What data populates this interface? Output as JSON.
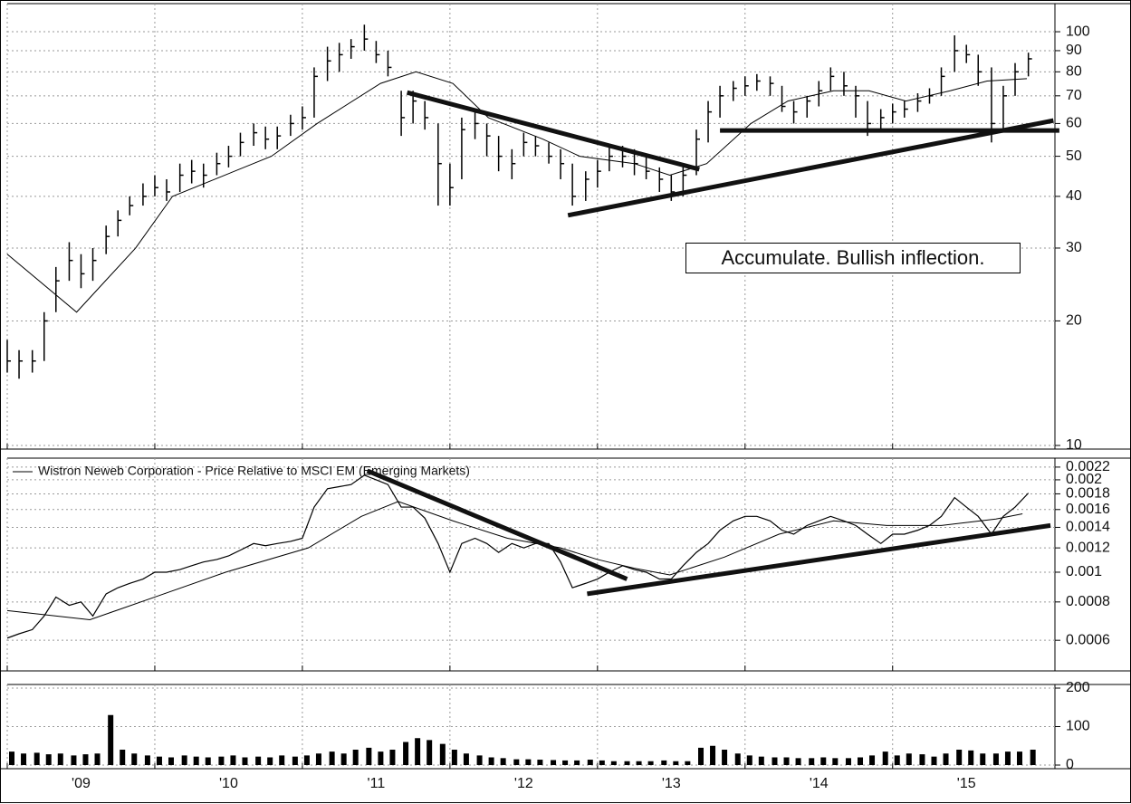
{
  "chart_data": [
    {
      "type": "ohlc",
      "log": true,
      "grid": true,
      "color": "#000000",
      "xlim": [
        2009,
        2016.1
      ],
      "ylim": [
        10,
        114.6
      ],
      "yticks": [
        10,
        20,
        30,
        40,
        50,
        60,
        70,
        80,
        90,
        100
      ],
      "x": [
        2009.0,
        2009.08,
        2009.17,
        2009.25,
        2009.33,
        2009.42,
        2009.5,
        2009.58,
        2009.67,
        2009.75,
        2009.83,
        2009.92,
        2010.0,
        2010.08,
        2010.17,
        2010.25,
        2010.33,
        2010.42,
        2010.5,
        2010.58,
        2010.67,
        2010.75,
        2010.83,
        2010.92,
        2011.0,
        2011.08,
        2011.17,
        2011.25,
        2011.33,
        2011.42,
        2011.5,
        2011.58,
        2011.67,
        2011.75,
        2011.83,
        2011.92,
        2012.0,
        2012.08,
        2012.17,
        2012.25,
        2012.33,
        2012.42,
        2012.5,
        2012.58,
        2012.67,
        2012.75,
        2012.83,
        2012.92,
        2013.0,
        2013.08,
        2013.17,
        2013.25,
        2013.33,
        2013.42,
        2013.5,
        2013.58,
        2013.67,
        2013.75,
        2013.83,
        2013.92,
        2014.0,
        2014.08,
        2014.17,
        2014.25,
        2014.33,
        2014.42,
        2014.5,
        2014.58,
        2014.67,
        2014.75,
        2014.83,
        2014.92,
        2015.0,
        2015.08,
        2015.17,
        2015.25,
        2015.33,
        2015.42,
        2015.5,
        2015.58,
        2015.67,
        2015.75,
        2015.83,
        2015.92
      ],
      "high": [
        18,
        17,
        17,
        21,
        27,
        31,
        29,
        30,
        34,
        37,
        40,
        43,
        45,
        44,
        48,
        49,
        48,
        51,
        53,
        57,
        60,
        59,
        59,
        63,
        66,
        82,
        92,
        94,
        96,
        104,
        95,
        90,
        72,
        72,
        68,
        60,
        48,
        62,
        64,
        60,
        56,
        52,
        57,
        56,
        54,
        52,
        48,
        46,
        49,
        53,
        53,
        52,
        50,
        47,
        45,
        48,
        58,
        68,
        74,
        76,
        78,
        79,
        78,
        74,
        68,
        70,
        76,
        82,
        80,
        74,
        68,
        65,
        67,
        68,
        71,
        73,
        82,
        98,
        93,
        88,
        82,
        74,
        84,
        89
      ],
      "low": [
        15,
        14.5,
        15,
        16,
        21,
        25,
        24,
        25,
        29,
        32,
        36,
        38,
        40,
        39,
        41,
        43,
        42,
        45,
        47,
        50,
        53,
        52,
        52,
        56,
        58,
        62,
        76,
        80,
        86,
        90,
        84,
        78,
        56,
        60,
        58,
        38,
        38,
        44,
        55,
        50,
        46,
        44,
        50,
        50,
        48,
        44,
        38,
        39,
        42,
        46,
        47,
        45,
        44,
        41,
        39,
        40,
        45,
        54,
        62,
        68,
        70,
        72,
        70,
        64,
        60,
        62,
        66,
        72,
        70,
        62,
        56,
        58,
        60,
        62,
        64,
        67,
        70,
        80,
        84,
        74,
        54,
        58,
        70,
        78
      ],
      "close": [
        16,
        16,
        16,
        20,
        25,
        28,
        26,
        28,
        32,
        35,
        38,
        40,
        42,
        41,
        45,
        46,
        45,
        48,
        50,
        54,
        57,
        55,
        56,
        60,
        62,
        78,
        85,
        88,
        92,
        96,
        88,
        82,
        62,
        68,
        62,
        48,
        42,
        58,
        60,
        56,
        50,
        48,
        54,
        53,
        50,
        48,
        40,
        44,
        46,
        50,
        50,
        48,
        46,
        44,
        41,
        45,
        55,
        64,
        70,
        73,
        74,
        76,
        75,
        66,
        64,
        68,
        72,
        78,
        74,
        70,
        60,
        62,
        64,
        65,
        68,
        70,
        78,
        90,
        88,
        80,
        60,
        70,
        80,
        86
      ],
      "ma": {
        "x": [
          2009.0,
          2009.47,
          2009.87,
          2010.12,
          2010.79,
          2011.1,
          2011.53,
          2011.77,
          2012.02,
          2012.26,
          2012.63,
          2012.88,
          2013.25,
          2013.49,
          2013.74,
          2014.04,
          2014.29,
          2014.6,
          2014.84,
          2015.09,
          2015.39,
          2015.64,
          2015.91
        ],
        "values": [
          29,
          21,
          30,
          40,
          50,
          60,
          75,
          80,
          75,
          62,
          55,
          50,
          48,
          45,
          48,
          60,
          68,
          72,
          72,
          68,
          72,
          76,
          77
        ]
      },
      "trendlines": [
        {
          "x": [
            2011.71,
            2013.69
          ],
          "values": [
            71.3,
            46.5
          ]
        },
        {
          "x": [
            2012.8,
            2016.09
          ],
          "values": [
            36,
            61
          ]
        },
        {
          "x": [
            2013.83,
            2016.13
          ],
          "values": [
            57.7,
            57.7
          ]
        }
      ],
      "annotation": "Accumulate. Bullish inflection."
    },
    {
      "type": "line",
      "log": true,
      "grid": true,
      "xlim": [
        2009,
        2016.1
      ],
      "ylim": [
        0.00049,
        0.00229
      ],
      "yticks": [
        0.0006,
        0.0008,
        0.001,
        0.0012,
        0.0014,
        0.0016,
        0.0018,
        0.002,
        0.0022
      ],
      "x": [
        2009.0,
        2009.08,
        2009.17,
        2009.25,
        2009.33,
        2009.42,
        2009.5,
        2009.58,
        2009.67,
        2009.75,
        2009.83,
        2009.92,
        2010.0,
        2010.08,
        2010.17,
        2010.25,
        2010.33,
        2010.42,
        2010.5,
        2010.58,
        2010.67,
        2010.75,
        2010.83,
        2010.92,
        2011.0,
        2011.08,
        2011.17,
        2011.25,
        2011.33,
        2011.42,
        2011.5,
        2011.58,
        2011.67,
        2011.75,
        2011.83,
        2011.92,
        2012.0,
        2012.08,
        2012.17,
        2012.25,
        2012.33,
        2012.42,
        2012.5,
        2012.58,
        2012.67,
        2012.75,
        2012.83,
        2012.92,
        2013.0,
        2013.08,
        2013.17,
        2013.25,
        2013.33,
        2013.42,
        2013.5,
        2013.58,
        2013.67,
        2013.75,
        2013.83,
        2013.92,
        2014.0,
        2014.08,
        2014.17,
        2014.25,
        2014.33,
        2014.42,
        2014.5,
        2014.58,
        2014.67,
        2014.75,
        2014.83,
        2014.92,
        2015.0,
        2015.08,
        2015.17,
        2015.25,
        2015.33,
        2015.42,
        2015.5,
        2015.58,
        2015.67,
        2015.75,
        2015.83,
        2015.92
      ],
      "series": [
        {
          "name": "Wistron Neweb Corporation - Price Relative to MSCI EM (Emerging Markets)",
          "color": "#000000",
          "values": [
            0.00061,
            0.00063,
            0.00065,
            0.00072,
            0.00083,
            0.00078,
            0.0008,
            0.00072,
            0.00085,
            0.00089,
            0.00092,
            0.00095,
            0.001,
            0.001,
            0.00102,
            0.00105,
            0.00108,
            0.0011,
            0.00113,
            0.00118,
            0.00124,
            0.00122,
            0.00124,
            0.00126,
            0.00129,
            0.00163,
            0.00187,
            0.0019,
            0.00193,
            0.00207,
            0.002,
            0.00193,
            0.00163,
            0.00163,
            0.0015,
            0.00124,
            0.001,
            0.00124,
            0.00129,
            0.00124,
            0.00116,
            0.00124,
            0.0012,
            0.00124,
            0.00124,
            0.00108,
            0.00089,
            0.00092,
            0.00095,
            0.001,
            0.00105,
            0.00102,
            0.001,
            0.00095,
            0.00095,
            0.00105,
            0.00116,
            0.00124,
            0.00137,
            0.00147,
            0.00152,
            0.00152,
            0.00147,
            0.00137,
            0.00133,
            0.00142,
            0.00147,
            0.00152,
            0.00147,
            0.00142,
            0.00133,
            0.00124,
            0.00133,
            0.00133,
            0.00137,
            0.00142,
            0.00152,
            0.00175,
            0.00163,
            0.00152,
            0.00133,
            0.00152,
            0.00163,
            0.00181
          ]
        }
      ],
      "ma": {
        "x": [
          2009.0,
          2009.56,
          2010.0,
          2010.48,
          2011.04,
          2011.4,
          2011.65,
          2012.02,
          2012.39,
          2012.75,
          2013.0,
          2013.25,
          2013.49,
          2013.86,
          2014.23,
          2014.6,
          2014.96,
          2015.33,
          2015.7,
          2015.88
        ],
        "values": [
          0.00075,
          0.0007,
          0.00083,
          0.001,
          0.0012,
          0.00152,
          0.0017,
          0.00147,
          0.00129,
          0.0012,
          0.0011,
          0.00103,
          0.00098,
          0.00112,
          0.00133,
          0.00147,
          0.00142,
          0.00142,
          0.00149,
          0.00155
        ]
      },
      "trendlines": [
        {
          "x": [
            2011.44,
            2013.2
          ],
          "values": [
            0.00214,
            0.00095
          ]
        },
        {
          "x": [
            2012.93,
            2016.07
          ],
          "values": [
            0.00085,
            0.00142
          ]
        }
      ]
    },
    {
      "type": "bar",
      "grid": true,
      "color": "#000000",
      "xlim": [
        2009,
        2016.1
      ],
      "ylim": [
        0,
        200
      ],
      "yticks": [
        0,
        100,
        200
      ],
      "xticks": [
        {
          "value": 2009,
          "label": "'09"
        },
        {
          "value": 2010,
          "label": "'10"
        },
        {
          "value": 2011,
          "label": "'11"
        },
        {
          "value": 2012,
          "label": "'12"
        },
        {
          "value": 2013,
          "label": "'13"
        },
        {
          "value": 2014,
          "label": "'14"
        },
        {
          "value": 2015,
          "label": "'15"
        }
      ],
      "x": [
        2009.0,
        2009.08,
        2009.17,
        2009.25,
        2009.33,
        2009.42,
        2009.5,
        2009.58,
        2009.67,
        2009.75,
        2009.83,
        2009.92,
        2010.0,
        2010.08,
        2010.17,
        2010.25,
        2010.33,
        2010.42,
        2010.5,
        2010.58,
        2010.67,
        2010.75,
        2010.83,
        2010.92,
        2011.0,
        2011.08,
        2011.17,
        2011.25,
        2011.33,
        2011.42,
        2011.5,
        2011.58,
        2011.67,
        2011.75,
        2011.83,
        2011.92,
        2012.0,
        2012.08,
        2012.17,
        2012.25,
        2012.33,
        2012.42,
        2012.5,
        2012.58,
        2012.67,
        2012.75,
        2012.83,
        2012.92,
        2013.0,
        2013.08,
        2013.17,
        2013.25,
        2013.33,
        2013.42,
        2013.5,
        2013.58,
        2013.67,
        2013.75,
        2013.83,
        2013.92,
        2014.0,
        2014.08,
        2014.17,
        2014.25,
        2014.33,
        2014.42,
        2014.5,
        2014.58,
        2014.67,
        2014.75,
        2014.83,
        2014.92,
        2015.0,
        2015.08,
        2015.17,
        2015.25,
        2015.33,
        2015.42,
        2015.5,
        2015.58,
        2015.67,
        2015.75,
        2015.83,
        2015.92
      ],
      "values": [
        35,
        30,
        32,
        28,
        30,
        25,
        28,
        30,
        130,
        40,
        30,
        25,
        22,
        20,
        25,
        22,
        20,
        22,
        25,
        20,
        22,
        20,
        25,
        22,
        25,
        30,
        35,
        30,
        40,
        45,
        35,
        40,
        60,
        70,
        65,
        55,
        40,
        30,
        25,
        20,
        18,
        15,
        15,
        14,
        13,
        12,
        12,
        14,
        12,
        10,
        10,
        10,
        10,
        12,
        10,
        10,
        45,
        50,
        40,
        30,
        25,
        22,
        20,
        20,
        18,
        18,
        20,
        18,
        18,
        20,
        25,
        35,
        25,
        30,
        28,
        22,
        30,
        40,
        38,
        30,
        30,
        35,
        35,
        40
      ]
    }
  ]
}
